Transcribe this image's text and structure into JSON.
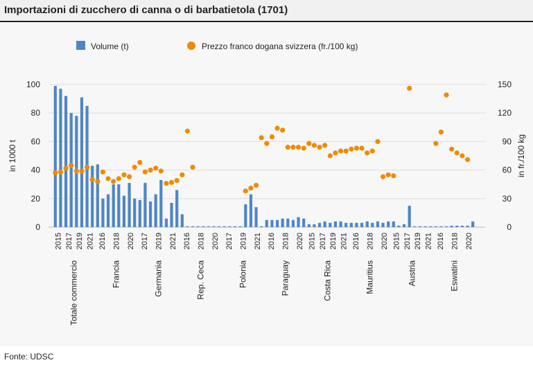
{
  "title": "Importazioni di zucchero di canna o di barbatietola (1701)",
  "source": "Fonte: UDSC",
  "chart_data": {
    "type": "bar+scatter",
    "legend": [
      {
        "name": "Volume (t)",
        "color": "#4f86c6",
        "marker": "square"
      },
      {
        "name": "Prezzo franco dogana svizzera (fr./100 kg)",
        "color": "#f08a00",
        "marker": "circle"
      }
    ],
    "ylabel_left": "in 1000 t",
    "ylabel_right": "in fr./100 kg",
    "ylim_left": [
      0,
      100
    ],
    "ylim_right": [
      0,
      150
    ],
    "left_ticks": [
      "100",
      "80",
      "60",
      "40",
      "20",
      "0"
    ],
    "right_ticks": [
      "150",
      "120",
      "90",
      "60",
      "30",
      "0"
    ],
    "groups": [
      {
        "name": "Totale commercio",
        "years": [
          2015,
          2016,
          2017,
          2018,
          2019,
          2020,
          2021,
          2022
        ],
        "volume": [
          99,
          97,
          92,
          80,
          78,
          91,
          85,
          43
        ],
        "price": [
          57,
          58,
          62,
          65,
          59,
          59,
          63,
          50
        ]
      },
      {
        "name": "Francia",
        "years": [
          2015,
          2016,
          2017,
          2018,
          2019,
          2020,
          2021,
          2022
        ],
        "volume": [
          44,
          20,
          23,
          30,
          30,
          22,
          31,
          20
        ],
        "price": [
          48,
          58,
          51,
          48,
          51,
          55,
          53,
          63
        ]
      },
      {
        "name": "Germania",
        "years": [
          2015,
          2016,
          2017,
          2018,
          2019,
          2020,
          2021,
          2022
        ],
        "volume": [
          19,
          31,
          18,
          23,
          33,
          6,
          17,
          26
        ],
        "price": [
          68,
          58,
          60,
          62,
          59,
          46,
          47,
          49
        ]
      },
      {
        "name": "Rep. Ceca",
        "years": [
          2015,
          2016,
          2017,
          2018,
          2019,
          2020,
          2021,
          2022
        ],
        "volume": [
          9,
          0,
          0,
          0,
          0,
          0,
          0,
          0
        ],
        "price": [
          55,
          101,
          63,
          null,
          null,
          null,
          null,
          null
        ]
      },
      {
        "name": "Polonia",
        "years": [
          2015,
          2016,
          2017,
          2018,
          2019,
          2020,
          2021,
          2022
        ],
        "volume": [
          0,
          0,
          0,
          0,
          16,
          23,
          14,
          0
        ],
        "price": [
          null,
          null,
          null,
          null,
          38,
          41,
          44,
          94
        ]
      },
      {
        "name": "Paraguay",
        "years": [
          2015,
          2016,
          2017,
          2018,
          2019,
          2020,
          2021,
          2022
        ],
        "volume": [
          5,
          5,
          5,
          6,
          6,
          5,
          7,
          6
        ],
        "price": [
          88,
          95,
          104,
          102,
          84,
          84,
          84,
          83
        ]
      },
      {
        "name": "Costa Rica",
        "years": [
          2015,
          2016,
          2017,
          2018,
          2019,
          2020,
          2021,
          2022
        ],
        "volume": [
          2,
          2,
          3,
          4,
          3,
          4,
          4,
          3
        ],
        "price": [
          88,
          86,
          84,
          86,
          75,
          78,
          80,
          80
        ]
      },
      {
        "name": "Mauritius",
        "years": [
          2015,
          2016,
          2017,
          2018,
          2019,
          2020,
          2021,
          2022
        ],
        "volume": [
          3,
          3,
          3,
          4,
          3,
          4,
          3,
          4
        ],
        "price": [
          82,
          83,
          83,
          78,
          80,
          90,
          53,
          55
        ]
      },
      {
        "name": "Austria",
        "years": [
          2015,
          2016,
          2017,
          2018,
          2019,
          2020,
          2021,
          2022
        ],
        "volume": [
          4,
          1,
          2,
          15,
          0,
          0,
          0,
          0
        ],
        "price": [
          54,
          null,
          null,
          146,
          null,
          null,
          null,
          null
        ]
      },
      {
        "name": "Eswatini",
        "years": [
          2015,
          2016,
          2017,
          2018,
          2019,
          2020,
          2021,
          2022
        ],
        "volume": [
          0,
          0,
          0,
          1,
          1,
          1,
          1,
          4
        ],
        "price": [
          88,
          100,
          139,
          82,
          78,
          75,
          71,
          null
        ]
      }
    ],
    "year_labels": [
      [
        "2015",
        "2017",
        "2019",
        "2021"
      ],
      [
        "2016",
        "2018",
        "2020"
      ],
      [
        "2017",
        "2019",
        "2021"
      ],
      [
        "2016",
        "2018",
        "2020"
      ],
      [
        "2017",
        "2019",
        "2021"
      ],
      [
        "2016",
        "2018",
        "2020"
      ],
      [
        "2015",
        "2017",
        "2019",
        "2021"
      ],
      [
        "2016",
        "2018",
        "2020"
      ],
      [
        "2015",
        "2017",
        "2019",
        "2021"
      ],
      [
        "2016",
        "2018",
        "2020"
      ]
    ]
  }
}
